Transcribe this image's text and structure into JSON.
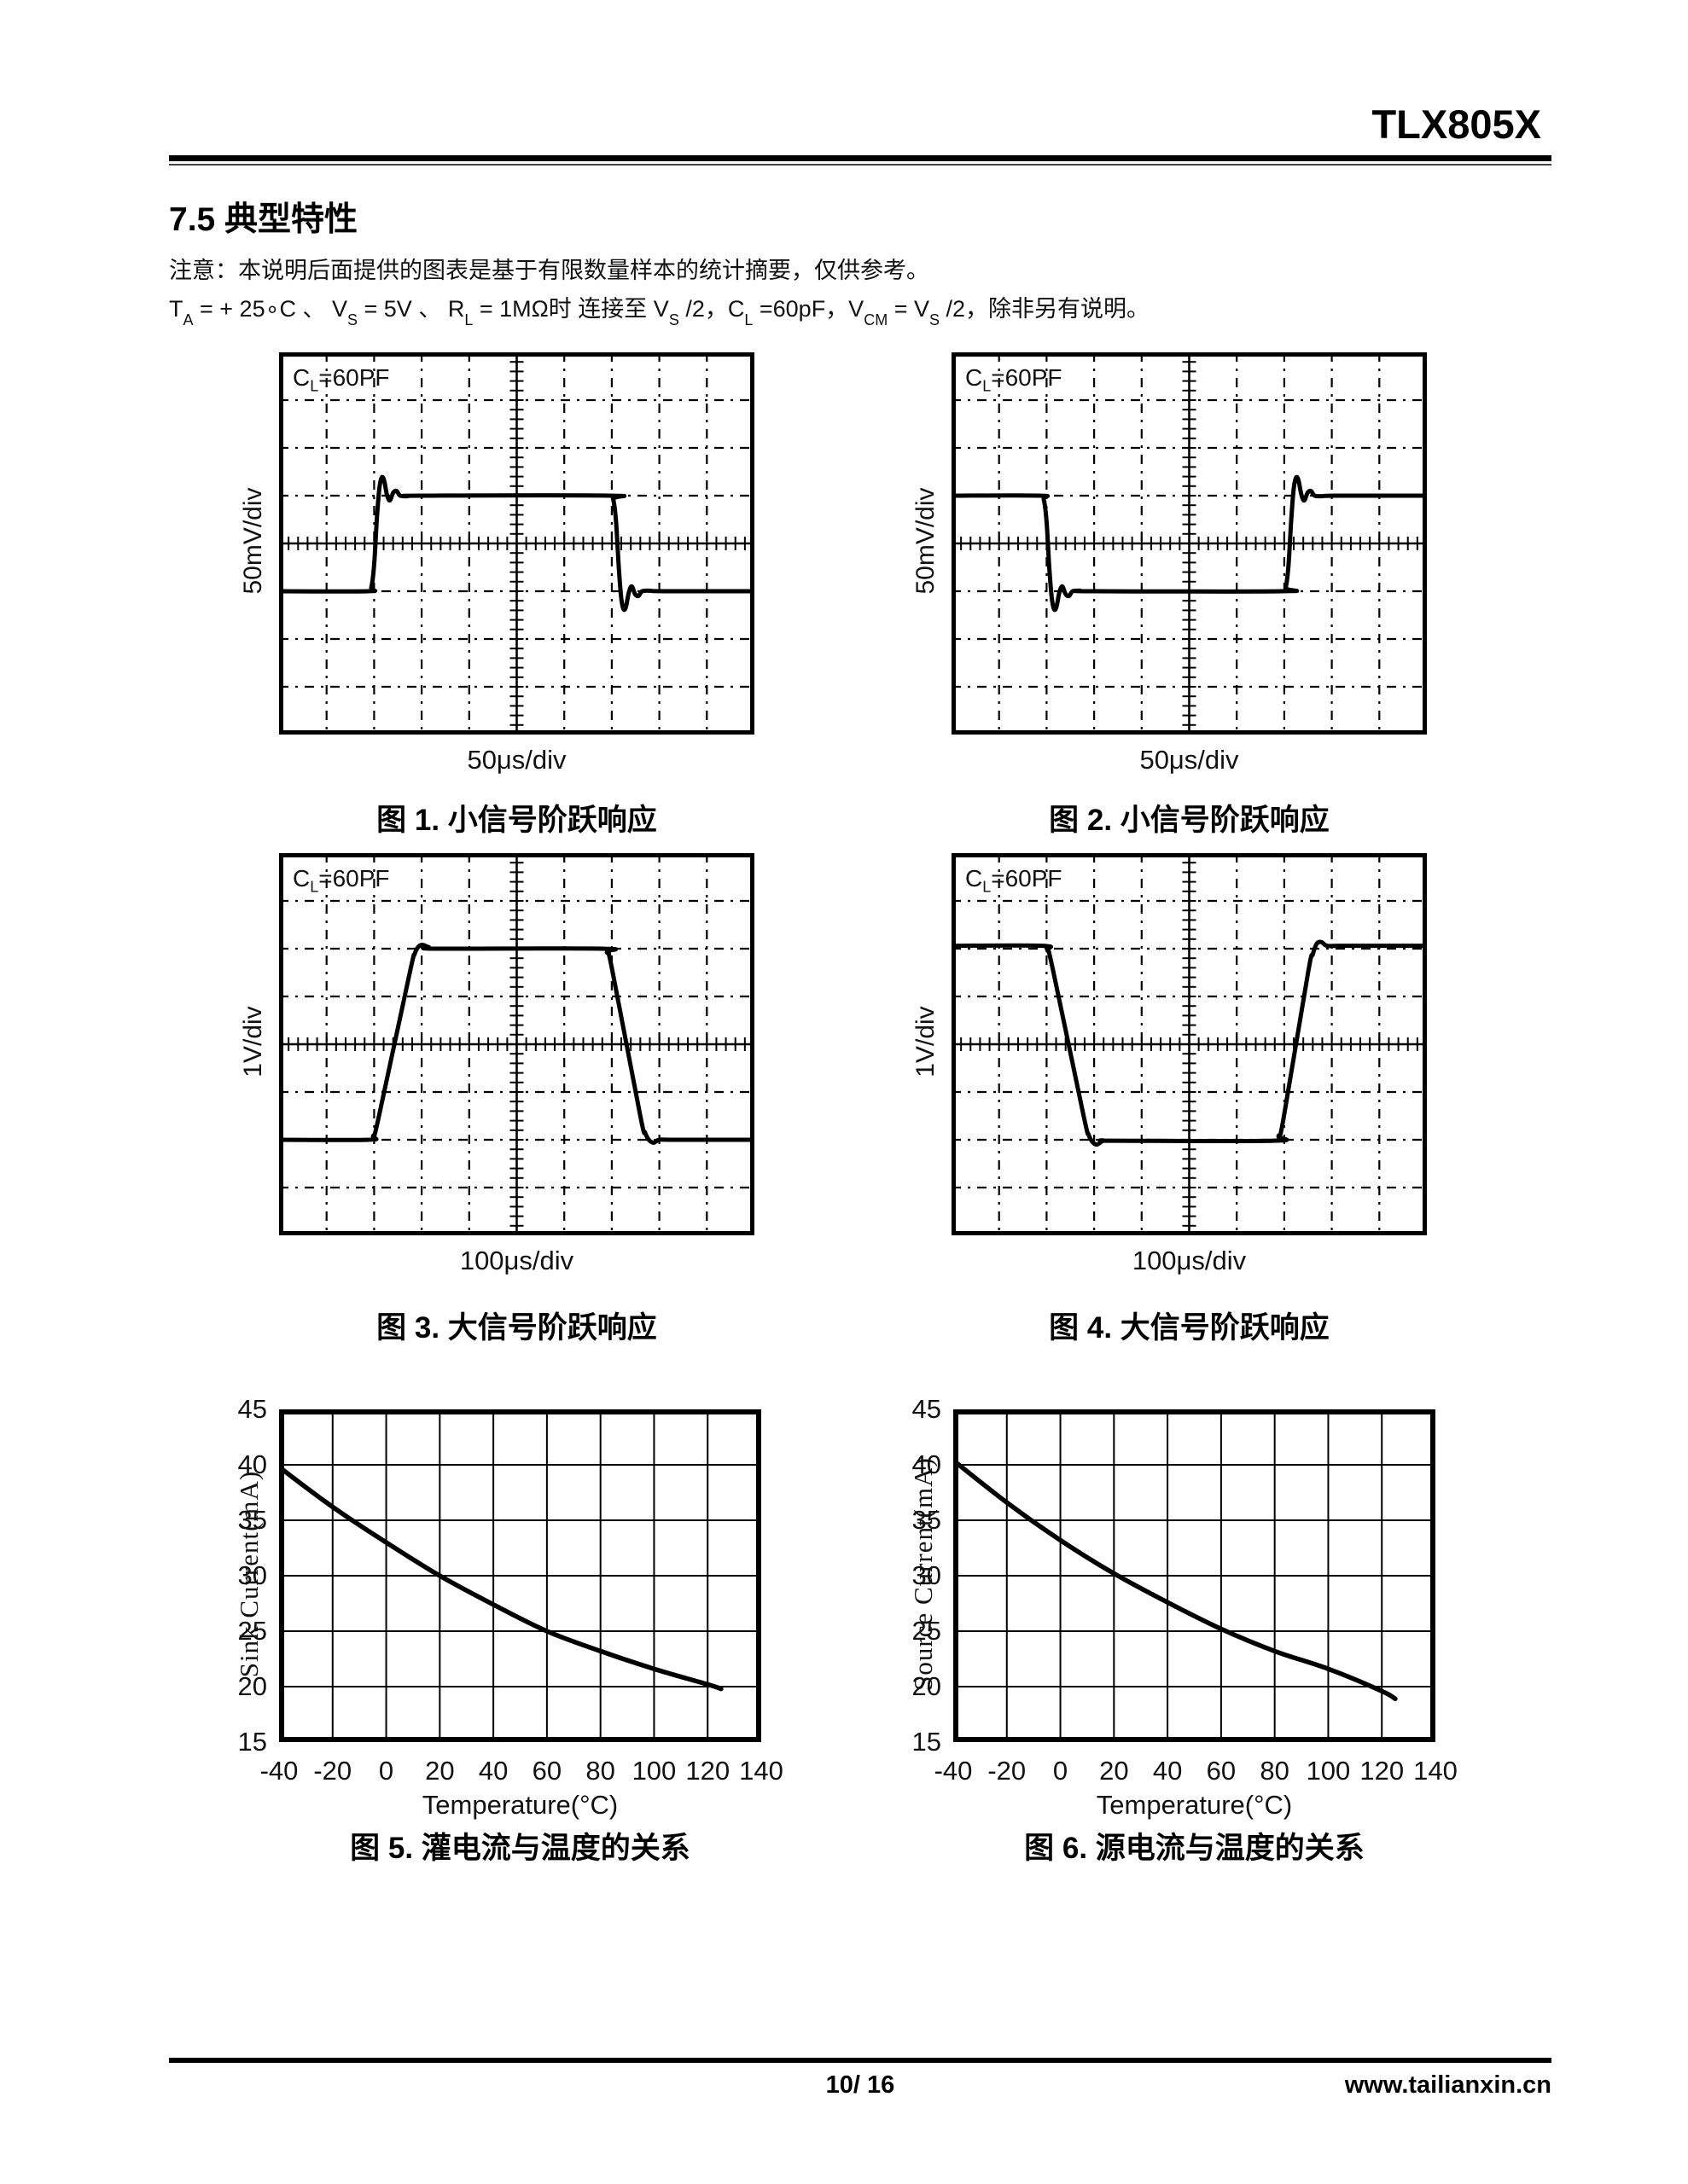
{
  "header": {
    "product": "TLX805X"
  },
  "section": {
    "title": "7.5 典型特性"
  },
  "notes": {
    "note": "注意：本说明后面提供的图表是基于有限数量样本的统计摘要，仅供参考。",
    "conditions_segments": [
      [
        "T",
        "A"
      ],
      [
        " = + 25∘C 、 V",
        "S"
      ],
      [
        " = 5V 、 R",
        "L"
      ],
      [
        " = 1MΩ时 连接至 V",
        "S"
      ],
      [
        " /2，C",
        "L"
      ],
      [
        " =60pF，V",
        "CM"
      ],
      [
        " = V",
        "S"
      ],
      [
        " /2，除非另有说明。",
        ""
      ]
    ]
  },
  "footer": {
    "page_number": "10/ 16",
    "website": "www.tailianxin.cn"
  },
  "chart_data": [
    {
      "type": "line",
      "subtype": "oscilloscope",
      "id": "fig1",
      "title": "图 1. 小信号阶跃响应",
      "annotation_parts": [
        [
          "C",
          "L"
        ],
        [
          "=60PF",
          ""
        ]
      ],
      "xlabel": "50μs/div",
      "ylabel": "50mV/div",
      "x_divisions": 10,
      "y_divisions": 8,
      "waveform_div_points": [
        [
          0,
          -1
        ],
        [
          1.86,
          -1
        ],
        [
          1.94,
          -0.92
        ],
        [
          2.0,
          -0.45
        ],
        [
          2.06,
          0.55
        ],
        [
          2.11,
          1.15
        ],
        [
          2.16,
          1.38
        ],
        [
          2.21,
          1.32
        ],
        [
          2.27,
          1.02
        ],
        [
          2.33,
          0.9
        ],
        [
          2.4,
          1.06
        ],
        [
          2.47,
          1.1
        ],
        [
          2.55,
          1.0
        ],
        [
          2.7,
          0.99
        ],
        [
          3.0,
          1
        ],
        [
          6.95,
          1
        ],
        [
          7.03,
          0.92
        ],
        [
          7.09,
          0.45
        ],
        [
          7.15,
          -0.55
        ],
        [
          7.2,
          -1.15
        ],
        [
          7.25,
          -1.38
        ],
        [
          7.3,
          -1.32
        ],
        [
          7.36,
          -1.02
        ],
        [
          7.42,
          -0.9
        ],
        [
          7.49,
          -1.06
        ],
        [
          7.56,
          -1.1
        ],
        [
          7.64,
          -1.0
        ],
        [
          7.79,
          -0.99
        ],
        [
          8.1,
          -1
        ],
        [
          10,
          -1
        ]
      ]
    },
    {
      "type": "line",
      "subtype": "oscilloscope",
      "id": "fig2",
      "title": "图 2. 小信号阶跃响应",
      "annotation_parts": [
        [
          "C",
          "L"
        ],
        [
          "=60PF",
          ""
        ]
      ],
      "xlabel": "50μs/div",
      "ylabel": "50mV/div",
      "x_divisions": 10,
      "y_divisions": 8,
      "waveform_div_points": [
        [
          0,
          1
        ],
        [
          1.86,
          1
        ],
        [
          1.94,
          0.92
        ],
        [
          2.0,
          0.45
        ],
        [
          2.06,
          -0.55
        ],
        [
          2.11,
          -1.15
        ],
        [
          2.16,
          -1.38
        ],
        [
          2.21,
          -1.32
        ],
        [
          2.27,
          -1.02
        ],
        [
          2.33,
          -0.9
        ],
        [
          2.4,
          -1.06
        ],
        [
          2.47,
          -1.1
        ],
        [
          2.55,
          -1.0
        ],
        [
          2.7,
          -0.99
        ],
        [
          3.0,
          -1
        ],
        [
          6.95,
          -1
        ],
        [
          7.03,
          -0.92
        ],
        [
          7.09,
          -0.45
        ],
        [
          7.15,
          0.55
        ],
        [
          7.2,
          1.15
        ],
        [
          7.25,
          1.38
        ],
        [
          7.3,
          1.32
        ],
        [
          7.36,
          1.02
        ],
        [
          7.42,
          0.9
        ],
        [
          7.49,
          1.06
        ],
        [
          7.56,
          1.1
        ],
        [
          7.64,
          1.0
        ],
        [
          7.79,
          0.99
        ],
        [
          8.1,
          1
        ],
        [
          10,
          1
        ]
      ]
    },
    {
      "type": "line",
      "subtype": "oscilloscope",
      "id": "fig3",
      "title": "图 3. 大信号阶跃响应",
      "annotation_parts": [
        [
          "C",
          "L"
        ],
        [
          "=60PF",
          ""
        ]
      ],
      "xlabel": "100μs/div",
      "ylabel": "1V/div",
      "x_divisions": 10,
      "y_divisions": 8,
      "waveform_div_points": [
        [
          0,
          -2
        ],
        [
          1.88,
          -2
        ],
        [
          1.98,
          -1.92
        ],
        [
          2.08,
          -1.6
        ],
        [
          2.75,
          1.5
        ],
        [
          2.85,
          1.88
        ],
        [
          2.93,
          2.04
        ],
        [
          3.02,
          2.08
        ],
        [
          3.15,
          2.03
        ],
        [
          3.35,
          2.0
        ],
        [
          6.8,
          2.0
        ],
        [
          6.9,
          1.92
        ],
        [
          7.0,
          1.6
        ],
        [
          7.6,
          -1.5
        ],
        [
          7.7,
          -1.85
        ],
        [
          7.78,
          -2.0
        ],
        [
          7.88,
          -2.06
        ],
        [
          8.0,
          -2.0
        ],
        [
          8.3,
          -2.0
        ],
        [
          10,
          -2
        ]
      ]
    },
    {
      "type": "line",
      "subtype": "oscilloscope",
      "id": "fig4",
      "title": "图 4. 大信号阶跃响应",
      "annotation_parts": [
        [
          "C",
          "L"
        ],
        [
          "=60PF",
          ""
        ]
      ],
      "xlabel": "100μs/div",
      "ylabel": "1V/div",
      "x_divisions": 10,
      "y_divisions": 8,
      "waveform_div_points": [
        [
          0,
          2.06
        ],
        [
          1.92,
          2.06
        ],
        [
          2.02,
          1.96
        ],
        [
          2.12,
          1.62
        ],
        [
          2.78,
          -1.5
        ],
        [
          2.88,
          -1.88
        ],
        [
          2.96,
          -2.04
        ],
        [
          3.06,
          -2.1
        ],
        [
          3.2,
          -2.02
        ],
        [
          3.45,
          -2.02
        ],
        [
          6.78,
          -2.02
        ],
        [
          6.88,
          -1.92
        ],
        [
          6.98,
          -1.58
        ],
        [
          7.5,
          1.5
        ],
        [
          7.6,
          1.88
        ],
        [
          7.68,
          2.1
        ],
        [
          7.78,
          2.14
        ],
        [
          7.9,
          2.06
        ],
        [
          8.2,
          2.06
        ],
        [
          10,
          2.06
        ]
      ]
    },
    {
      "type": "line",
      "subtype": "xy-curve",
      "id": "fig5",
      "title": "图 5. 灌电流与温度的关系",
      "xlabel": "Temperature(°C)",
      "ylabel": "Sink Current(mA)",
      "xlim": [
        -40,
        140
      ],
      "ylim": [
        15,
        45
      ],
      "xticks": [
        -40,
        -20,
        0,
        20,
        40,
        60,
        80,
        100,
        120,
        140
      ],
      "yticks": [
        15,
        20,
        25,
        30,
        35,
        40,
        45
      ],
      "grid": true,
      "legend": false,
      "x": [
        -40,
        -20,
        0,
        20,
        40,
        60,
        80,
        100,
        120,
        125
      ],
      "y": [
        39.8,
        36.2,
        33.0,
        30.0,
        27.4,
        25.0,
        23.2,
        21.6,
        20.2,
        19.8
      ]
    },
    {
      "type": "line",
      "subtype": "xy-curve",
      "id": "fig6",
      "title": "图 6. 源电流与温度的关系",
      "xlabel": "Temperature(°C)",
      "ylabel": "Source Current(mA)",
      "xlim": [
        -40,
        140
      ],
      "ylim": [
        15,
        45
      ],
      "xticks": [
        -40,
        -20,
        0,
        20,
        40,
        60,
        80,
        100,
        120,
        140
      ],
      "yticks": [
        15,
        20,
        25,
        30,
        35,
        40,
        45
      ],
      "grid": true,
      "legend": false,
      "x": [
        -40,
        -20,
        0,
        20,
        40,
        60,
        80,
        100,
        120,
        125
      ],
      "y": [
        40.4,
        36.6,
        33.2,
        30.2,
        27.6,
        25.2,
        23.2,
        21.6,
        19.6,
        18.9
      ]
    }
  ]
}
